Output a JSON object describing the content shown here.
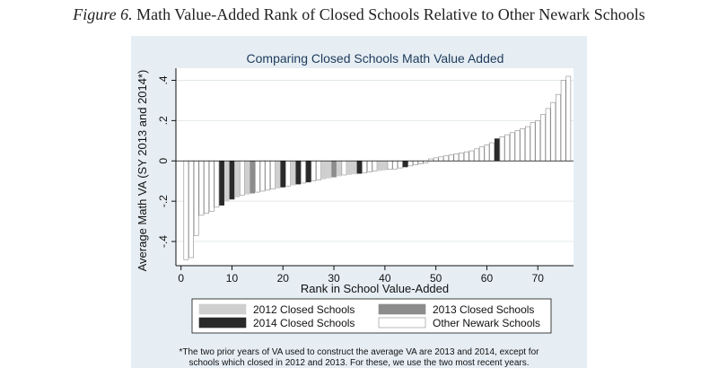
{
  "caption": {
    "figure_label": "Figure 6.",
    "text": "Math Value-Added Rank of Closed Schools Relative to Other Newark Schools"
  },
  "footnote": {
    "line1": "*The two prior years of VA used to construct the average VA are 2013 and 2014, except for",
    "line2": "schools which closed in 2012 and 2013. For these, we use the two most recent years."
  },
  "colors": {
    "panel_bg": "#e6eef4",
    "other": "#ffffff",
    "closed_2012": "#cfcfcf",
    "closed_2013": "#8c8c8c",
    "closed_2014": "#2a2a2a"
  },
  "chart_data": {
    "type": "bar",
    "title": "Comparing Closed Schools Math Value Added",
    "xlabel": "Rank in School Value-Added",
    "ylabel": "Average Math VA (SY 2013 and 2014*)",
    "xlim": [
      -1,
      77
    ],
    "ylim": [
      -0.52,
      0.46
    ],
    "x_ticks": [
      0,
      10,
      20,
      30,
      40,
      50,
      60,
      70
    ],
    "x_tick_labels": [
      "0",
      "10",
      "20",
      "30",
      "40",
      "50",
      "60",
      "70"
    ],
    "y_ticks": [
      -0.4,
      -0.2,
      0,
      0.2,
      0.4
    ],
    "y_tick_labels": [
      "-.4",
      "-.2",
      "0",
      ".2",
      ".4"
    ],
    "grid": true,
    "legend_position": "bottom",
    "legend": [
      {
        "key": "2012",
        "label": "2012 Closed Schools"
      },
      {
        "key": "2013",
        "label": "2013 Closed Schools"
      },
      {
        "key": "2014",
        "label": "2014 Closed Schools"
      },
      {
        "key": "other",
        "label": "Other Newark Schools"
      }
    ],
    "x": [
      1,
      2,
      3,
      4,
      5,
      6,
      7,
      8,
      9,
      10,
      11,
      12,
      13,
      14,
      15,
      16,
      17,
      18,
      19,
      20,
      21,
      22,
      23,
      24,
      25,
      26,
      27,
      28,
      29,
      30,
      31,
      32,
      33,
      34,
      35,
      36,
      37,
      38,
      39,
      40,
      41,
      42,
      43,
      44,
      45,
      46,
      47,
      48,
      49,
      50,
      51,
      52,
      53,
      54,
      55,
      56,
      57,
      58,
      59,
      60,
      61,
      62,
      63,
      64,
      65,
      66,
      67,
      68,
      69,
      70,
      71,
      72,
      73,
      74,
      75,
      76
    ],
    "values": [
      -0.49,
      -0.48,
      -0.37,
      -0.27,
      -0.26,
      -0.25,
      -0.23,
      -0.22,
      -0.2,
      -0.19,
      -0.18,
      -0.17,
      -0.165,
      -0.16,
      -0.155,
      -0.15,
      -0.145,
      -0.14,
      -0.135,
      -0.13,
      -0.125,
      -0.12,
      -0.115,
      -0.11,
      -0.105,
      -0.1,
      -0.095,
      -0.09,
      -0.085,
      -0.08,
      -0.075,
      -0.07,
      -0.068,
      -0.065,
      -0.062,
      -0.06,
      -0.055,
      -0.05,
      -0.048,
      -0.045,
      -0.042,
      -0.04,
      -0.035,
      -0.03,
      -0.025,
      -0.02,
      -0.015,
      -0.01,
      0.01,
      0.015,
      0.02,
      0.025,
      0.03,
      0.035,
      0.04,
      0.045,
      0.05,
      0.06,
      0.07,
      0.08,
      0.09,
      0.11,
      0.12,
      0.13,
      0.14,
      0.15,
      0.16,
      0.17,
      0.19,
      0.2,
      0.23,
      0.26,
      0.29,
      0.33,
      0.4,
      0.42
    ],
    "groups": [
      "other",
      "other",
      "other",
      "other",
      "other",
      "other",
      "other",
      "2014",
      "2012",
      "2014",
      "2012",
      "other",
      "2012",
      "2013",
      "other",
      "other",
      "other",
      "other",
      "2012",
      "2014",
      "other",
      "2012",
      "2014",
      "other",
      "2014",
      "other",
      "other",
      "2012",
      "2012",
      "2013",
      "2012",
      "other",
      "2012",
      "2012",
      "2014",
      "other",
      "other",
      "other",
      "2012",
      "2012",
      "other",
      "other",
      "other",
      "2014",
      "other",
      "other",
      "other",
      "other",
      "other",
      "other",
      "other",
      "other",
      "other",
      "other",
      "other",
      "other",
      "other",
      "other",
      "other",
      "other",
      "other",
      "2014",
      "other",
      "other",
      "other",
      "other",
      "other",
      "other",
      "other",
      "other",
      "other",
      "other",
      "other",
      "other",
      "other",
      "other"
    ]
  }
}
